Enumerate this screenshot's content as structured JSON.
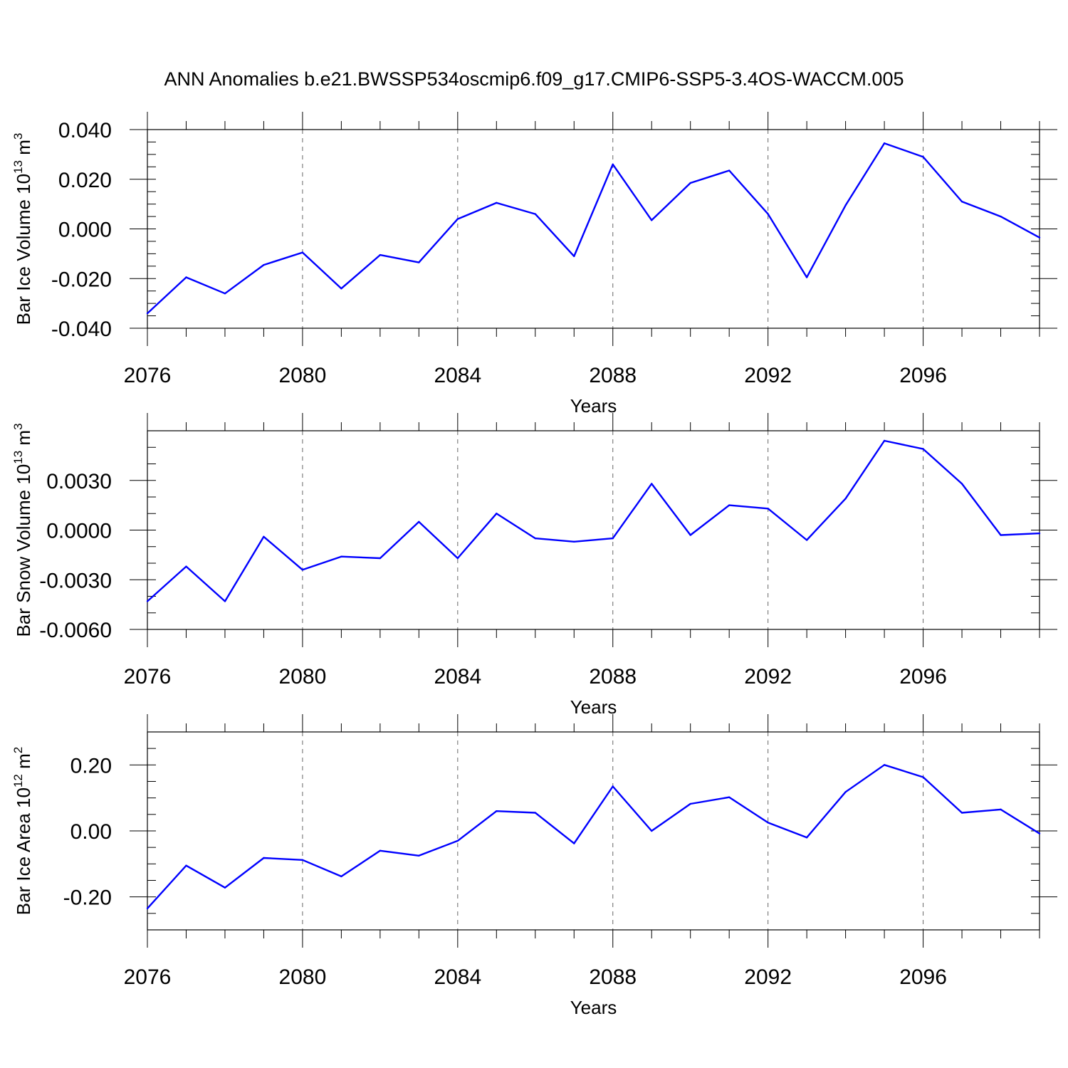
{
  "title": "ANN Anomalies b.e21.BWSSP534oscmip6.f09_g17.CMIP6-SSP5-3.4OS-WACCM.005",
  "colors": {
    "series": "#0000ff",
    "axis": "#000000",
    "grid": "#666666"
  },
  "chart_data": [
    {
      "type": "line",
      "title": "",
      "xlabel": "Years",
      "ylabel_main": "Bar Ice Volume 10",
      "ylabel_exp": "13",
      "ylabel_unit": " m",
      "ylabel_unit_exp": "3",
      "xlim": [
        2076,
        2099
      ],
      "ylim": [
        -0.04,
        0.04
      ],
      "xticks": [
        "2076",
        "2080",
        "2084",
        "2088",
        "2092",
        "2096"
      ],
      "yticks": [
        "-0.040",
        "-0.020",
        "0.000",
        "0.020",
        "0.040"
      ],
      "yminor_step": 0.005,
      "grid": "vertical-dashed-at-major-x",
      "x": [
        2076,
        2077,
        2078,
        2079,
        2080,
        2081,
        2082,
        2083,
        2084,
        2085,
        2086,
        2087,
        2088,
        2089,
        2090,
        2091,
        2092,
        2093,
        2094,
        2095,
        2096,
        2097,
        2098,
        2099
      ],
      "values": [
        -0.034,
        -0.0195,
        -0.026,
        -0.0145,
        -0.0095,
        -0.024,
        -0.0105,
        -0.0135,
        0.004,
        0.0105,
        0.006,
        -0.011,
        0.026,
        0.0035,
        0.0185,
        0.0235,
        0.006,
        -0.0195,
        0.0095,
        0.0345,
        0.029,
        0.011,
        0.005,
        -0.0035
      ]
    },
    {
      "type": "line",
      "title": "",
      "xlabel": "Years",
      "ylabel_main": "Bar Snow Volume 10",
      "ylabel_exp": "13",
      "ylabel_unit": " m",
      "ylabel_unit_exp": "3",
      "xlim": [
        2076,
        2099
      ],
      "ylim": [
        -0.006,
        0.006
      ],
      "xticks": [
        "2076",
        "2080",
        "2084",
        "2088",
        "2092",
        "2096"
      ],
      "yticks": [
        "-0.0060",
        "-0.0030",
        "0.0000",
        "0.0030"
      ],
      "yminor_step": 0.001,
      "grid": "vertical-dashed-at-major-x",
      "x": [
        2076,
        2077,
        2078,
        2079,
        2080,
        2081,
        2082,
        2083,
        2084,
        2085,
        2086,
        2087,
        2088,
        2089,
        2090,
        2091,
        2092,
        2093,
        2094,
        2095,
        2096,
        2097,
        2098,
        2099
      ],
      "values": [
        -0.0043,
        -0.0022,
        -0.0043,
        -0.0004,
        -0.0024,
        -0.0016,
        -0.0017,
        0.0005,
        -0.0017,
        0.001,
        -0.0005,
        -0.0007,
        -0.0005,
        0.0028,
        -0.0003,
        0.0015,
        0.0013,
        -0.0006,
        0.0019,
        0.0054,
        0.0049,
        0.0028,
        -0.0003,
        -0.0002
      ]
    },
    {
      "type": "line",
      "title": "",
      "xlabel": "Years",
      "ylabel_main": "Bar Ice Area 10",
      "ylabel_exp": "12",
      "ylabel_unit": " m",
      "ylabel_unit_exp": "2",
      "xlim": [
        2076,
        2099
      ],
      "ylim": [
        -0.3,
        0.3
      ],
      "xticks": [
        "2076",
        "2080",
        "2084",
        "2088",
        "2092",
        "2096"
      ],
      "yticks": [
        "-0.20",
        "0.00",
        "0.20"
      ],
      "yminor_step": 0.05,
      "grid": "vertical-dashed-at-major-x",
      "x": [
        2076,
        2077,
        2078,
        2079,
        2080,
        2081,
        2082,
        2083,
        2084,
        2085,
        2086,
        2087,
        2088,
        2089,
        2090,
        2091,
        2092,
        2093,
        2094,
        2095,
        2096,
        2097,
        2098,
        2099
      ],
      "values": [
        -0.235,
        -0.105,
        -0.172,
        -0.082,
        -0.088,
        -0.138,
        -0.06,
        -0.075,
        -0.03,
        0.06,
        0.055,
        -0.038,
        0.135,
        0.0,
        0.082,
        0.102,
        0.025,
        -0.02,
        0.118,
        0.2,
        0.163,
        0.055,
        0.065,
        -0.008
      ]
    }
  ]
}
